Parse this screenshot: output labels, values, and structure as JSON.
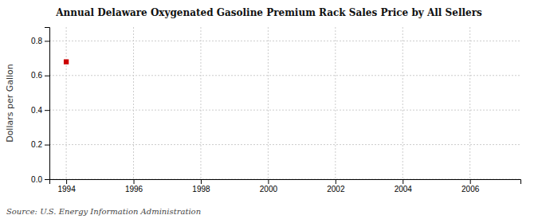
{
  "chart_data": {
    "type": "scatter",
    "title": "Annual Delaware Oxygenated Gasoline Premium Rack Sales Price by All Sellers",
    "y_label": "Dollars per Gallon",
    "annotations": [
      "Source: U.S. Energy Information Administration"
    ],
    "x": [
      1994
    ],
    "values": [
      0.679
    ],
    "color": "#cc0000",
    "marker": "square",
    "xlim": [
      1993.5,
      2007.5
    ],
    "ylim": [
      0.0,
      0.88
    ],
    "xticks": [
      1994,
      1996,
      1998,
      2000,
      2002,
      2004,
      2006
    ],
    "yticks": [
      {
        "value": 0.0,
        "label": "0.0"
      },
      0.2,
      0.4,
      0.6,
      0.8
    ],
    "grid": true
  }
}
